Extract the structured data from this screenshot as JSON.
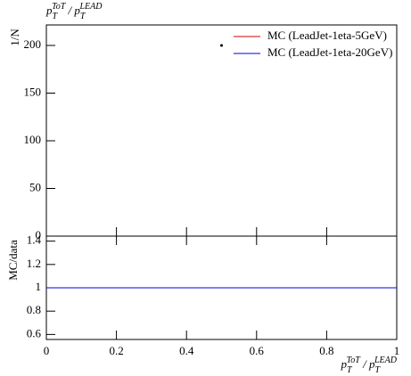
{
  "chart_data": {
    "type": "ratio",
    "title_parts": [
      {
        "text": "p"
      },
      {
        "text": "T",
        "pos": "sub"
      },
      {
        "text": "ToT",
        "pos": "sup"
      },
      {
        "text": " / "
      },
      {
        "text": "p"
      },
      {
        "text": "T",
        "pos": "sub"
      },
      {
        "text": "LEAD",
        "pos": "sup"
      }
    ],
    "xlabel_parts": [
      {
        "text": "p"
      },
      {
        "text": "T",
        "pos": "sub"
      },
      {
        "text": "ToT",
        "pos": "sup"
      },
      {
        "text": " / "
      },
      {
        "text": "p"
      },
      {
        "text": "T",
        "pos": "sub"
      },
      {
        "text": "LEAD",
        "pos": "sup"
      }
    ],
    "ylabel": "1/N",
    "ratio_ylabel": "MC/data",
    "xlim": [
      0,
      1
    ],
    "xticks": [
      0,
      0.2,
      0.4,
      0.6,
      0.8,
      1
    ],
    "ylim": [
      0,
      221.5
    ],
    "yticks": [
      0,
      50,
      100,
      150,
      200
    ],
    "ratio_ylim": [
      0.557,
      1.443
    ],
    "ratio_yticks": [
      0.6,
      0.8,
      1,
      1.2,
      1.4
    ],
    "data": {
      "x": [
        0.5
      ],
      "values": [
        200
      ],
      "color": "#000000"
    },
    "series": [
      {
        "name": "MC (LeadJet-1eta-5GeV)",
        "color": "#cc0000",
        "x": [
          0,
          1
        ],
        "ratio": [
          1,
          1
        ]
      },
      {
        "name": "MC (LeadJet-1eta-20GeV)",
        "color": "#0000dd",
        "x": [
          0,
          1
        ],
        "ratio": [
          1,
          1
        ]
      }
    ],
    "legend": "upper right"
  }
}
